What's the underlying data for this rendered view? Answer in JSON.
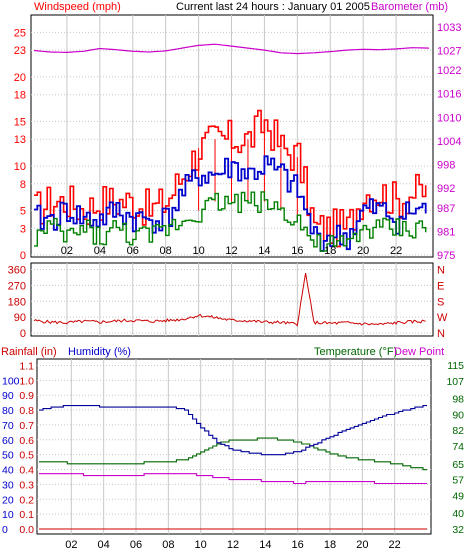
{
  "header": {
    "windspeed_label": "Windspeed (mph)",
    "title": "Current last 24 hours : January 01 2005",
    "barometer_label": "Barometer (mb)"
  },
  "rain_label": "Rainfall (in)",
  "humidity_label": "Humidity (%)",
  "temperature_label": "Temperature (°F)",
  "dewpoint_label": "Dew Point",
  "x_ticks": [
    "02",
    "04",
    "06",
    "08",
    "10",
    "12",
    "14",
    "16",
    "18",
    "20",
    "22"
  ],
  "colors": {
    "gust": "#ff0000",
    "avg_wind": "#0000cc",
    "min_wind": "#008000",
    "barometer": "#cc00cc",
    "direction": "#cc0000",
    "humidity": "#000099",
    "temperature": "#006600",
    "dewpoint": "#cc00cc",
    "rain_axis": "#cc0000",
    "humidity_axis": "#0000cc",
    "temperature_axis": "#006600",
    "frame": "#000000",
    "grid": "#c8c8c8"
  },
  "chart_data": [
    {
      "type": "line",
      "panel": "wind",
      "title": "Current last 24 hours : January 01 2005",
      "ylabel": "Windspeed (mph)",
      "ylabel_right": "Barometer (mb)",
      "y_ticks": [
        "0",
        "3",
        "5",
        "8",
        "10",
        "13",
        "15",
        "18",
        "20",
        "23",
        "25"
      ],
      "ylim": [
        0,
        26.5
      ],
      "y2_ticks": [
        "975",
        "981",
        "987",
        "992",
        "998",
        "1004",
        "1010",
        "1016",
        "1022",
        "1027",
        "1033"
      ],
      "y2lim": [
        975,
        1035
      ],
      "xlim": [
        0,
        24
      ],
      "x": [
        0.0,
        1.0,
        2.0,
        3.0,
        4.0,
        5.0,
        6.0,
        7.0,
        8.0,
        9.0,
        10.0,
        11.0,
        12.0,
        13.0,
        14.0,
        15.0,
        16.0,
        17.0,
        18.0,
        19.0,
        20.0,
        21.0,
        22.0,
        23.0,
        24.0
      ],
      "series": [
        {
          "role": "gust",
          "values": [
            5,
            6,
            6,
            5,
            6,
            6,
            6,
            5,
            6,
            9,
            12,
            13,
            13,
            13,
            15,
            12,
            11,
            3,
            3,
            3,
            7,
            7,
            6,
            7,
            7
          ]
        },
        {
          "role": "average",
          "values": [
            4,
            4,
            5,
            4,
            4,
            5,
            4,
            4,
            4,
            7,
            9,
            9,
            10,
            9,
            10,
            9,
            7,
            2,
            2,
            2,
            5,
            5,
            4,
            5,
            5
          ]
        },
        {
          "role": "minimum",
          "values": [
            2,
            3,
            2,
            3,
            2,
            3,
            2,
            2,
            3,
            4,
            5,
            6,
            6,
            6,
            6,
            5,
            4,
            1,
            1,
            1,
            3,
            3,
            3,
            3,
            3
          ]
        },
        {
          "role": "barometer",
          "axis": "right",
          "values": [
            1027,
            1026.6,
            1026.5,
            1026.8,
            1027.5,
            1027.2,
            1026.8,
            1026.6,
            1026.9,
            1027.6,
            1028.3,
            1028.6,
            1028.1,
            1027.6,
            1027.1,
            1026.4,
            1026.2,
            1026.4,
            1026.7,
            1027.1,
            1027.3,
            1027.2,
            1027.4,
            1027.7,
            1027.6
          ]
        }
      ]
    },
    {
      "type": "line",
      "panel": "direction",
      "y_ticks": [
        "0",
        "90",
        "180",
        "270",
        "360"
      ],
      "ylim": [
        0,
        380
      ],
      "y2_ticks": [
        "N",
        "W",
        "S",
        "E",
        "N"
      ],
      "xlim": [
        0,
        24
      ],
      "x": [
        0.0,
        1.0,
        2.0,
        3.0,
        4.0,
        5.0,
        6.0,
        7.0,
        8.0,
        9.0,
        10.0,
        11.0,
        12.0,
        13.0,
        14.0,
        15.0,
        16.0,
        16.5,
        17.0,
        18.0,
        19.0,
        20.0,
        21.0,
        22.0,
        23.0,
        24.0
      ],
      "series": [
        {
          "role": "wind-direction",
          "values": [
            70,
            62,
            58,
            66,
            62,
            68,
            72,
            66,
            70,
            78,
            100,
            88,
            72,
            70,
            62,
            60,
            50,
            340,
            60,
            55,
            58,
            52,
            48,
            58,
            64,
            68
          ]
        }
      ]
    },
    {
      "type": "line",
      "panel": "climate",
      "ylabel": "Rainfall (in)",
      "y_ticks": [
        "0.0",
        "0.1",
        "0.2",
        "0.3",
        "0.4",
        "0.5",
        "0.6",
        "0.7",
        "0.8",
        "0.9",
        "1.0",
        "1.1"
      ],
      "ylim": [
        0,
        1.13
      ],
      "y_ticks_humidity": [
        "0",
        "10",
        "20",
        "30",
        "40",
        "50",
        "60",
        "70",
        "80",
        "90",
        "100"
      ],
      "y2_ticks": [
        "32",
        "40",
        "49",
        "57",
        "65",
        "74",
        "82",
        "90",
        "98",
        "107",
        "115"
      ],
      "y2lim": [
        32,
        117
      ],
      "xlim": [
        0,
        24
      ],
      "x": [
        0.0,
        1.0,
        2.0,
        3.0,
        4.0,
        5.0,
        6.0,
        7.0,
        8.0,
        9.0,
        10.0,
        11.0,
        12.0,
        13.0,
        14.0,
        15.0,
        16.0,
        17.0,
        18.0,
        19.0,
        20.0,
        21.0,
        22.0,
        23.0,
        24.0
      ],
      "series": [
        {
          "role": "humidity",
          "axis": "humidity",
          "values": [
            80,
            82,
            83,
            83,
            82,
            82,
            82,
            82,
            82,
            80,
            68,
            58,
            53,
            51,
            50,
            50,
            52,
            57,
            62,
            67,
            71,
            75,
            78,
            81,
            83
          ]
        },
        {
          "role": "temperature",
          "axis": "right",
          "values": [
            66,
            66,
            65,
            65,
            65,
            65,
            65,
            66,
            66,
            67,
            71,
            75,
            77,
            77,
            78,
            77,
            76,
            73,
            70,
            68,
            67,
            66,
            65,
            63,
            62
          ]
        },
        {
          "role": "dew-point",
          "axis": "right",
          "values": [
            60,
            60,
            60,
            59,
            59,
            59,
            59,
            60,
            60,
            60,
            59,
            58,
            57,
            57,
            56,
            56,
            55,
            56,
            56,
            56,
            56,
            55,
            55,
            55,
            55
          ]
        },
        {
          "role": "rainfall",
          "axis": "left",
          "values": [
            0,
            0,
            0,
            0,
            0,
            0,
            0,
            0,
            0,
            0,
            0,
            0,
            0,
            0,
            0,
            0,
            0,
            0,
            0,
            0,
            0,
            0,
            0,
            0,
            0
          ]
        }
      ]
    }
  ]
}
